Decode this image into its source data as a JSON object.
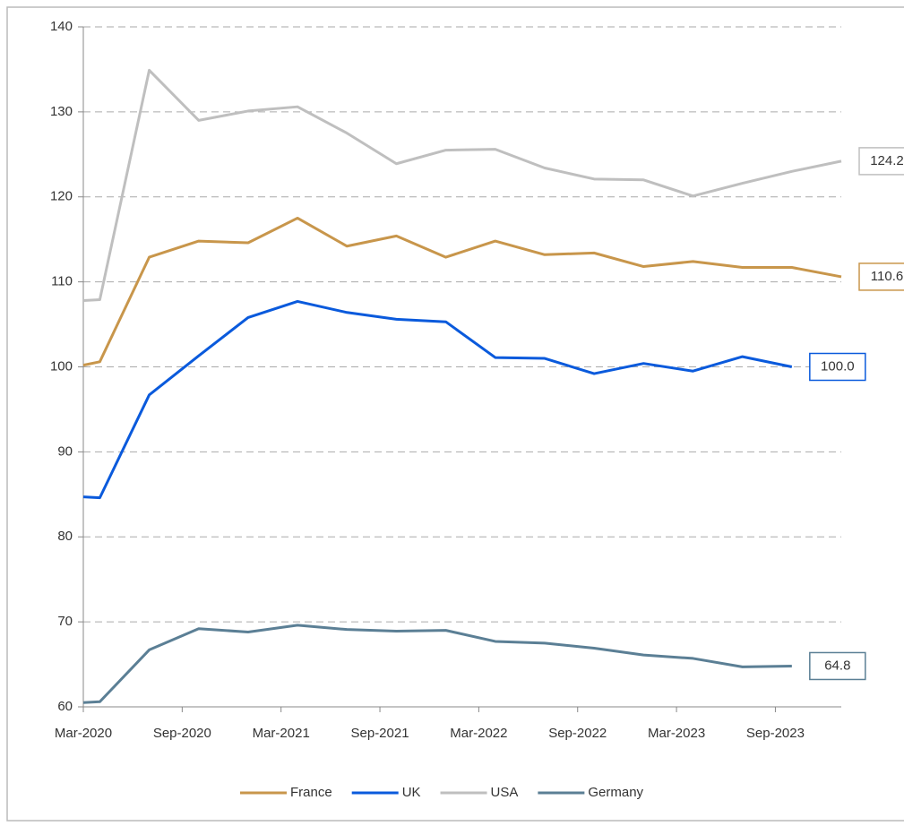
{
  "chart_data": {
    "type": "line",
    "x": [
      "2020-03",
      "2020-04",
      "2020-07",
      "2020-10",
      "2021-01",
      "2021-04",
      "2021-07",
      "2021-10",
      "2022-01",
      "2022-04",
      "2022-07",
      "2022-10",
      "2023-01",
      "2023-04",
      "2023-07",
      "2023-10",
      "2024-01"
    ],
    "xlim": [
      "2020-03",
      "2024-01"
    ],
    "xticks": [
      {
        "value": "2020-03",
        "label": "Mar-2020"
      },
      {
        "value": "2020-09",
        "label": "Sep-2020"
      },
      {
        "value": "2021-03",
        "label": "Mar-2021"
      },
      {
        "value": "2021-09",
        "label": "Sep-2021"
      },
      {
        "value": "2022-03",
        "label": "Mar-2022"
      },
      {
        "value": "2022-09",
        "label": "Sep-2022"
      },
      {
        "value": "2023-03",
        "label": "Mar-2023"
      },
      {
        "value": "2023-09",
        "label": "Sep-2023"
      }
    ],
    "ylim": [
      60,
      140
    ],
    "yticks": [
      60,
      70,
      80,
      90,
      100,
      110,
      120,
      130,
      140
    ],
    "grid": true,
    "series": [
      {
        "name": "France",
        "color": "#c8964b",
        "values": [
          100.2,
          100.6,
          112.9,
          114.8,
          114.6,
          117.5,
          114.2,
          115.4,
          112.9,
          114.8,
          113.2,
          113.4,
          111.8,
          112.4,
          111.7,
          111.7,
          110.6
        ],
        "value_labels": [
          null,
          null,
          null,
          null,
          null,
          null,
          null,
          null,
          null,
          null,
          null,
          null,
          null,
          null,
          null,
          null,
          "110.6"
        ]
      },
      {
        "name": "UK",
        "color": "#0a5adc",
        "values": [
          84.7,
          84.6,
          96.7,
          101.3,
          105.8,
          107.7,
          106.4,
          105.6,
          105.3,
          101.1,
          101.0,
          99.2,
          100.4,
          99.5,
          101.2,
          100.0,
          null
        ],
        "value_labels": [
          null,
          null,
          null,
          null,
          null,
          null,
          null,
          null,
          null,
          null,
          null,
          null,
          null,
          null,
          null,
          "100.0",
          null
        ]
      },
      {
        "name": "USA",
        "color": "#bfbfbf",
        "values": [
          107.8,
          107.9,
          134.9,
          129.0,
          130.1,
          130.6,
          127.5,
          123.9,
          125.5,
          125.6,
          123.4,
          122.1,
          122.0,
          120.1,
          121.6,
          123.0,
          124.2
        ],
        "value_labels": [
          null,
          null,
          null,
          null,
          null,
          null,
          null,
          null,
          null,
          null,
          null,
          null,
          null,
          null,
          null,
          null,
          "124.2"
        ]
      },
      {
        "name": "Germany",
        "color": "#5b7f95",
        "values": [
          60.5,
          60.6,
          66.7,
          69.2,
          68.8,
          69.6,
          69.1,
          68.9,
          69.0,
          67.7,
          67.5,
          66.9,
          66.1,
          65.7,
          64.7,
          64.8,
          null
        ],
        "value_labels": [
          null,
          null,
          null,
          null,
          null,
          null,
          null,
          null,
          null,
          null,
          null,
          null,
          null,
          null,
          null,
          "64.8",
          null
        ]
      }
    ]
  }
}
